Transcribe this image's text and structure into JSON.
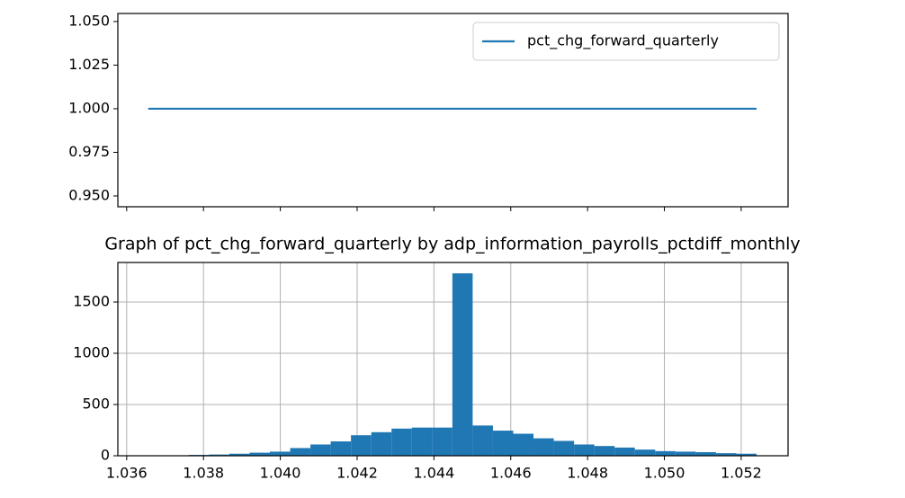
{
  "chart_data": [
    {
      "type": "line",
      "x": [
        1.03656,
        1.0524
      ],
      "series": [
        {
          "name": "pct_chg_forward_quarterly",
          "color": "#1f77b4",
          "values": [
            1,
            1
          ]
        }
      ],
      "xlim": [
        1.03577,
        1.05322
      ],
      "ylim": [
        0.9438,
        1.0546
      ],
      "yticks": [
        {
          "value": 0.95,
          "label": "0.950"
        },
        {
          "value": 0.975,
          "label": "0.975"
        },
        {
          "value": 1.0,
          "label": "1.000"
        },
        {
          "value": 1.025,
          "label": "1.025"
        },
        {
          "value": 1.05,
          "label": "1.050"
        }
      ],
      "grid": false,
      "legend": "upper-right"
    },
    {
      "type": "histogram",
      "title": "Graph of pct_chg_forward_quarterly by adp_information_payrolls_pctdiff_monthly",
      "bins": [
        1.03656,
        1.037088,
        1.037616,
        1.038144,
        1.038672,
        1.0392,
        1.039728,
        1.040256,
        1.040784,
        1.041312,
        1.04184,
        1.042368,
        1.042896,
        1.043424,
        1.043952,
        1.04448,
        1.045008,
        1.045536,
        1.046064,
        1.046592,
        1.04712,
        1.047648,
        1.048176,
        1.048704,
        1.049232,
        1.04976,
        1.050288,
        1.050816,
        1.051344,
        1.051872,
        1.0524
      ],
      "values": [
        2,
        4,
        8,
        12,
        20,
        30,
        40,
        75,
        110,
        140,
        200,
        230,
        265,
        275,
        275,
        1780,
        295,
        245,
        215,
        170,
        145,
        110,
        95,
        80,
        60,
        45,
        40,
        35,
        25,
        20
      ],
      "color": "#1f77b4",
      "xlim": [
        1.03577,
        1.05322
      ],
      "xticks": [
        1.036,
        1.038,
        {
          "value": 1.04,
          "label": "1.040"
        },
        1.042,
        1.044,
        1.046,
        1.048,
        {
          "value": 1.05,
          "label": "1.050"
        },
        1.052
      ],
      "ylim": [
        0,
        1886
      ],
      "yticks": [
        0,
        500,
        1000,
        1500
      ],
      "grid": true
    }
  ]
}
